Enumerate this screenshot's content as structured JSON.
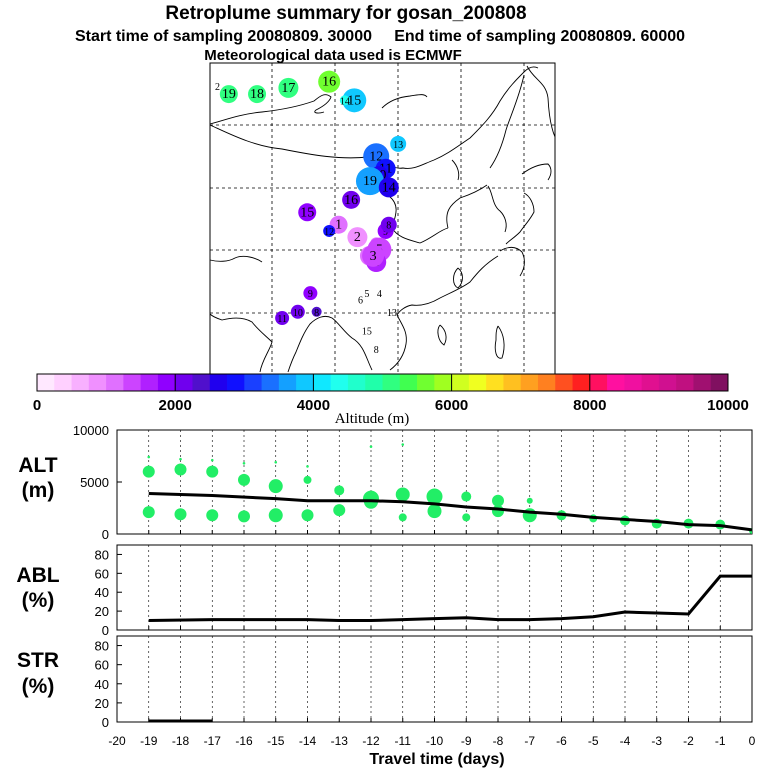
{
  "header": {
    "title": "Retroplume summary for gosan_200808",
    "sampling": "Start time of sampling 20080809. 30000     End time of sampling 20080809. 60000",
    "met": "Meteorological data used is ECMWF"
  },
  "map": {
    "corner_label": "2",
    "plume_points": [
      {
        "label": "19",
        "lon": 86,
        "lat": 55,
        "alt": 5100,
        "size": 9
      },
      {
        "label": "18",
        "lon": 95,
        "lat": 55,
        "alt": 5000,
        "size": 9
      },
      {
        "label": "17",
        "lon": 105,
        "lat": 56,
        "alt": 5200,
        "size": 10
      },
      {
        "label": "16",
        "lon": 118,
        "lat": 57,
        "alt": 5700,
        "size": 11
      },
      {
        "label": "15",
        "lon": 126,
        "lat": 54,
        "alt": 3800,
        "size": 12
      },
      {
        "label": "14",
        "lon": 123,
        "lat": 54,
        "alt": 4400,
        "size": 5
      },
      {
        "label": "13",
        "lon": 140,
        "lat": 47,
        "alt": 3800,
        "size": 8
      },
      {
        "label": "12",
        "lon": 133,
        "lat": 45,
        "alt": 3300,
        "size": 13
      },
      {
        "label": "11",
        "lon": 136,
        "lat": 43,
        "alt": 2900,
        "size": 10
      },
      {
        "label": "10",
        "lon": 134,
        "lat": 42,
        "alt": 2600,
        "size": 9
      },
      {
        "label": "19",
        "lon": 131,
        "lat": 41,
        "alt": 3500,
        "size": 14
      },
      {
        "label": "16",
        "lon": 125,
        "lat": 38,
        "alt": 2200,
        "size": 9
      },
      {
        "label": "15",
        "lon": 111,
        "lat": 36,
        "alt": 1900,
        "size": 9
      },
      {
        "label": "14",
        "lon": 137,
        "lat": 40,
        "alt": 2500,
        "size": 10
      },
      {
        "label": "9",
        "lon": 136,
        "lat": 33,
        "alt": 1800,
        "size": 8
      },
      {
        "label": "8",
        "lon": 137,
        "lat": 34,
        "alt": 2000,
        "size": 8
      },
      {
        "label": "7",
        "lon": 133,
        "lat": 31,
        "alt": 1200,
        "size": 6
      },
      {
        "label": "6",
        "lon": 131,
        "lat": 29,
        "alt": 1100,
        "size": 10
      },
      {
        "label": "5",
        "lon": 134,
        "lat": 30,
        "alt": 1300,
        "size": 12
      },
      {
        "label": "4",
        "lon": 133,
        "lat": 28,
        "alt": 1500,
        "size": 10
      },
      {
        "label": "3",
        "lon": 132,
        "lat": 29,
        "alt": 1400,
        "size": 11
      },
      {
        "label": "2",
        "lon": 127,
        "lat": 32,
        "alt": 900,
        "size": 10
      },
      {
        "label": "1",
        "lon": 121,
        "lat": 34,
        "alt": 1000,
        "size": 9
      },
      {
        "label": "12",
        "lon": 118,
        "lat": 33,
        "alt": 2900,
        "size": 6
      },
      {
        "label": "9",
        "lon": 112,
        "lat": 23,
        "alt": 1900,
        "size": 7
      },
      {
        "label": "10",
        "lon": 108,
        "lat": 20,
        "alt": 2100,
        "size": 7
      },
      {
        "label": "11",
        "lon": 103,
        "lat": 19,
        "alt": 2200,
        "size": 7
      },
      {
        "label": "8",
        "lon": 114,
        "lat": 20,
        "alt": 2300,
        "size": 5
      },
      {
        "label": "6",
        "lon": 128,
        "lat": 22,
        "alt": 0,
        "size": 0
      },
      {
        "label": "5",
        "lon": 130,
        "lat": 23,
        "alt": 0,
        "size": 0
      },
      {
        "label": "4",
        "lon": 134,
        "lat": 23,
        "alt": 0,
        "size": 0
      },
      {
        "label": "13",
        "lon": 138,
        "lat": 20,
        "alt": 0,
        "size": 0
      },
      {
        "label": "15",
        "lon": 130,
        "lat": 17,
        "alt": 0,
        "size": 0
      },
      {
        "label": "8",
        "lon": 133,
        "lat": 14,
        "alt": 0,
        "size": 0
      }
    ]
  },
  "colorbar": {
    "ticks": [
      "0",
      "2000",
      "4000",
      "6000",
      "8000",
      "10000"
    ],
    "label": "Altitude (m)",
    "colors": [
      "#ffe8ff",
      "#ffd0ff",
      "#f8b0ff",
      "#f090ff",
      "#e070ff",
      "#cc44ff",
      "#b020ff",
      "#9000ff",
      "#7000ee",
      "#5010cc",
      "#2000ee",
      "#1010ff",
      "#1a40ff",
      "#1a70ff",
      "#14a0ff",
      "#10c8ff",
      "#10e8ff",
      "#20ffee",
      "#20ffcc",
      "#20ffaa",
      "#30ff80",
      "#40ff50",
      "#70ff30",
      "#a0ff20",
      "#d0ff20",
      "#f0ff20",
      "#ffe020",
      "#ffc020",
      "#ffa020",
      "#ff8020",
      "#ff5020",
      "#ff2020",
      "#ff1060",
      "#ff10a0",
      "#f010a0",
      "#e01090",
      "#d01090",
      "#c01080",
      "#a01070",
      "#801060"
    ]
  },
  "chart_data": [
    {
      "type": "scatter",
      "name": "ALT panel",
      "ylabel": "ALT\n(m)",
      "ylabel_line1": "ALT",
      "ylabel_line2": "(m)",
      "ylim": [
        0,
        10000
      ],
      "yticks": [
        "0",
        "5000",
        "10000"
      ],
      "xlim": [
        -20,
        0
      ],
      "series": [
        {
          "name": "upper plume blobs",
          "x": [
            -19,
            -18,
            -17,
            -16,
            -15,
            -14,
            -13,
            -12,
            -11,
            -10,
            -9,
            -8,
            -7
          ],
          "y": [
            6000,
            6200,
            6000,
            5200,
            4600,
            5200,
            4200,
            3400,
            3800,
            3600,
            3600,
            3200,
            3200
          ],
          "size": [
            6,
            6,
            6,
            6,
            7,
            4,
            5,
            8,
            7,
            8,
            5,
            6,
            3
          ]
        },
        {
          "name": "lower plume blobs",
          "x": [
            -19,
            -18,
            -17,
            -16,
            -15,
            -14,
            -13,
            -12,
            -11,
            -10,
            -9,
            -8,
            -7,
            -6,
            -5,
            -4,
            -3,
            -2,
            -1,
            0
          ],
          "y": [
            2100,
            1900,
            1800,
            1700,
            1800,
            1800,
            2300,
            3100,
            1600,
            2200,
            1600,
            2200,
            1800,
            1800,
            1500,
            1300,
            1000,
            1000,
            900,
            300
          ],
          "size": [
            6,
            6,
            6,
            6,
            7,
            6,
            6,
            7,
            4,
            7,
            4,
            6,
            7,
            5,
            4,
            5,
            5,
            5,
            5,
            3
          ]
        },
        {
          "name": "median altitude line",
          "x": [
            -19,
            -17,
            -15,
            -14,
            -13,
            -12,
            -11,
            -10,
            -9,
            -8,
            -7,
            -6,
            -5,
            -4,
            -3,
            -2,
            -1,
            0
          ],
          "y": [
            3900,
            3700,
            3400,
            3200,
            3200,
            3200,
            3100,
            2900,
            2600,
            2400,
            2100,
            1900,
            1600,
            1400,
            1200,
            900,
            800,
            400
          ]
        }
      ]
    },
    {
      "type": "line",
      "name": "ABL panel",
      "ylabel_line1": "ABL",
      "ylabel_line2": "(%)",
      "ylim": [
        0,
        90
      ],
      "yticks": [
        "0",
        "20",
        "40",
        "60",
        "80"
      ],
      "xlim": [
        -20,
        0
      ],
      "x": [
        -19,
        -17,
        -14,
        -13,
        -12,
        -11,
        -10,
        -9,
        -8,
        -7,
        -6,
        -5,
        -4,
        -3,
        -2,
        -1,
        0
      ],
      "y": [
        10,
        11,
        11,
        10,
        10,
        11,
        12,
        13,
        11,
        11,
        12,
        14,
        19,
        18,
        17,
        57,
        57
      ]
    },
    {
      "type": "line",
      "name": "STR panel",
      "ylabel_line1": "STR",
      "ylabel_line2": "(%)",
      "ylim": [
        0,
        90
      ],
      "yticks": [
        "0",
        "20",
        "40",
        "60",
        "80"
      ],
      "xlim": [
        -20,
        0
      ],
      "x": [
        -19,
        -17
      ],
      "y": [
        1,
        1
      ]
    }
  ],
  "xaxis": {
    "label": "Travel time (days)",
    "ticks": [
      "-20",
      "-19",
      "-18",
      "-17",
      "-16",
      "-15",
      "-14",
      "-13",
      "-12",
      "-11",
      "-10",
      "-9",
      "-8",
      "-7",
      "-6",
      "-5",
      "-4",
      "-3",
      "-2",
      "-1",
      "0"
    ]
  },
  "colors": {
    "green": "#22ee66",
    "line": "#000000"
  }
}
